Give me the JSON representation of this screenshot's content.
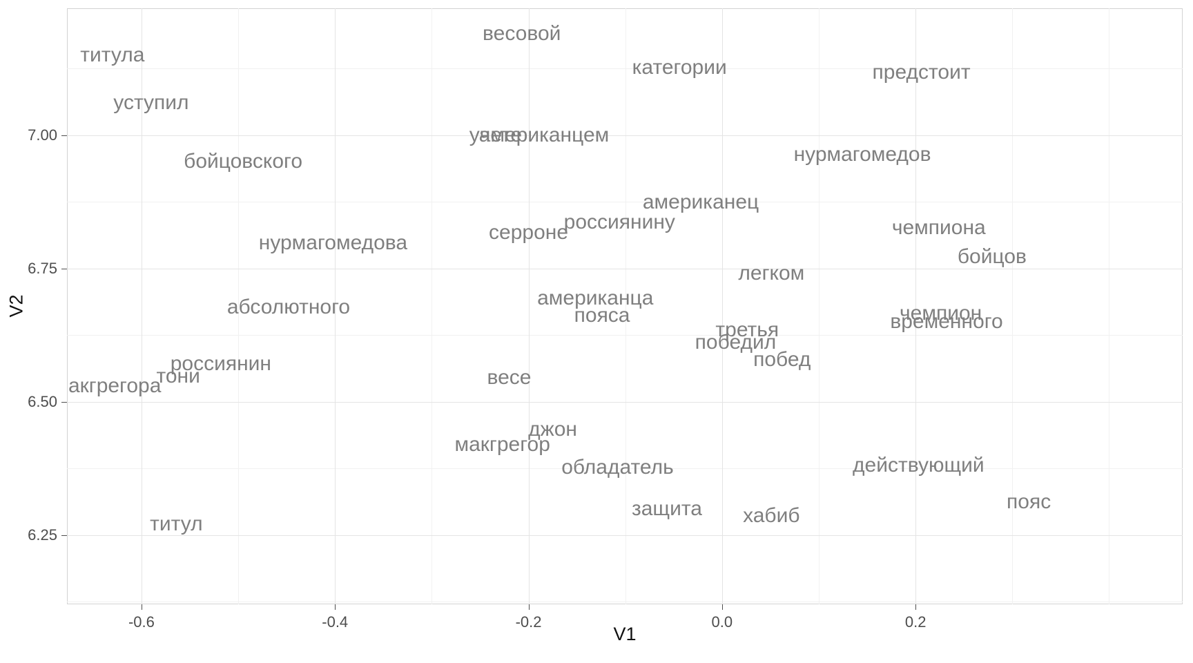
{
  "chart_data": {
    "type": "scatter",
    "variant": "text-scatter-word-embedding",
    "title": "",
    "xlabel": "V1",
    "ylabel": "V2",
    "xlim": [
      -0.677,
      0.476
    ],
    "ylim": [
      6.12,
      7.238
    ],
    "grid": true,
    "legend": "none",
    "x_ticks": [
      -0.6,
      -0.4,
      -0.2,
      0.0,
      0.2
    ],
    "x_tick_labels": [
      "-0.6",
      "-0.4",
      "-0.2",
      "0.0",
      "0.2"
    ],
    "y_ticks": [
      6.25,
      6.5,
      6.75,
      7.0
    ],
    "y_tick_labels": [
      "6.25",
      "6.50",
      "6.75",
      "7.00"
    ],
    "x_minor_ticks": [
      -0.5,
      -0.3,
      -0.1,
      0.1,
      0.3,
      0.4
    ],
    "y_minor_ticks": [
      6.125,
      6.375,
      6.625,
      6.875,
      7.125
    ],
    "points": [
      {
        "label": "весовой",
        "x": -0.207,
        "y": 7.19
      },
      {
        "label": "титула",
        "x": -0.63,
        "y": 7.15
      },
      {
        "label": "категории",
        "x": -0.044,
        "y": 7.126
      },
      {
        "label": "предстоит",
        "x": 0.206,
        "y": 7.118
      },
      {
        "label": "уступил",
        "x": -0.59,
        "y": 7.06
      },
      {
        "label": "учете",
        "x": -0.234,
        "y": 7.0
      },
      {
        "label": "американцем",
        "x": -0.184,
        "y": 7.0
      },
      {
        "label": "нурмагомедов",
        "x": 0.145,
        "y": 6.964
      },
      {
        "label": "бойцовского",
        "x": -0.495,
        "y": 6.95
      },
      {
        "label": "американец",
        "x": -0.022,
        "y": 6.874
      },
      {
        "label": "россиянину",
        "x": -0.106,
        "y": 6.837
      },
      {
        "label": "чемпиона",
        "x": 0.224,
        "y": 6.826
      },
      {
        "label": "серроне",
        "x": -0.2,
        "y": 6.817
      },
      {
        "label": "нурмагомедова",
        "x": -0.402,
        "y": 6.798
      },
      {
        "label": "бойцов",
        "x": 0.279,
        "y": 6.771
      },
      {
        "label": "легком",
        "x": 0.051,
        "y": 6.741
      },
      {
        "label": "американца",
        "x": -0.131,
        "y": 6.694
      },
      {
        "label": "абсолютного",
        "x": -0.448,
        "y": 6.677
      },
      {
        "label": "чемпион",
        "x": 0.226,
        "y": 6.665
      },
      {
        "label": "пояса",
        "x": -0.124,
        "y": 6.661
      },
      {
        "label": "временного",
        "x": 0.232,
        "y": 6.65
      },
      {
        "label": "третья",
        "x": 0.026,
        "y": 6.634
      },
      {
        "label": "победил",
        "x": 0.014,
        "y": 6.611
      },
      {
        "label": "побед",
        "x": 0.062,
        "y": 6.579
      },
      {
        "label": "россиянин",
        "x": -0.518,
        "y": 6.571
      },
      {
        "label": "тони",
        "x": -0.562,
        "y": 6.548
      },
      {
        "label": "весе",
        "x": -0.22,
        "y": 6.545
      },
      {
        "label": "макгрегора",
        "x": -0.635,
        "y": 6.529
      },
      {
        "label": "джон",
        "x": -0.175,
        "y": 6.448
      },
      {
        "label": "макгрегор",
        "x": -0.227,
        "y": 6.419
      },
      {
        "label": "действующий",
        "x": 0.203,
        "y": 6.38
      },
      {
        "label": "обладатель",
        "x": -0.108,
        "y": 6.376
      },
      {
        "label": "пояс",
        "x": 0.317,
        "y": 6.312
      },
      {
        "label": "защита",
        "x": -0.057,
        "y": 6.299
      },
      {
        "label": "хабиб",
        "x": 0.051,
        "y": 6.286
      },
      {
        "label": "титул",
        "x": -0.564,
        "y": 6.27
      }
    ]
  },
  "colors": {
    "word": "#7f7f7f",
    "tick_label": "#4d4d4d",
    "axis_title": "#111111",
    "grid_major": "#e4e4e4",
    "grid_minor": "#f1f1f1",
    "panel_border": "#d2d2d2",
    "background": "#ffffff"
  }
}
